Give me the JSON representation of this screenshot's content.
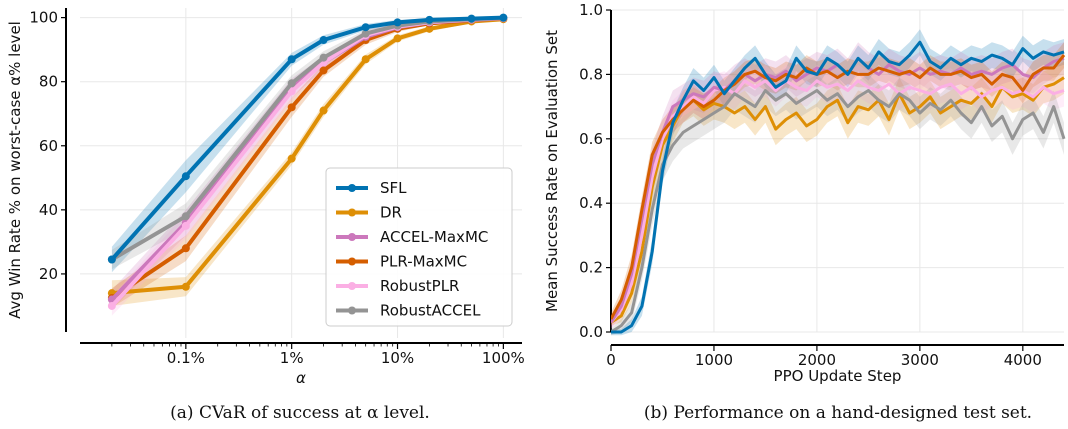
{
  "chart_data": [
    {
      "type": "line",
      "caption": "(a) CVaR of success at α level.",
      "xlabel": "α",
      "ylabel": "Avg Win Rate % on worst-case α% level",
      "xscale": "log",
      "xlim": [
        0.0001,
        1.5
      ],
      "ylim": [
        0,
        103
      ],
      "x_ticks": [
        0.001,
        0.01,
        0.1,
        1
      ],
      "x_tick_labels": [
        "0.1%",
        "1%",
        "10%",
        "100%"
      ],
      "y_ticks": [
        20,
        40,
        60,
        80,
        100
      ],
      "y_tick_labels": [
        "20",
        "40",
        "60",
        "80",
        "100"
      ],
      "grid": true,
      "legend_position": "lower-right",
      "x": [
        0.0002,
        0.001,
        0.01,
        0.02,
        0.05,
        0.1,
        0.2,
        0.5,
        1
      ],
      "series": [
        {
          "name": "SFL",
          "color": "#0173b2",
          "values": [
            24.5,
            50.5,
            87,
            93,
            97,
            98.5,
            99.3,
            99.7,
            100
          ],
          "band": [
            4,
            5,
            2,
            1.5,
            1,
            0.8,
            0.5,
            0.3,
            0.2
          ]
        },
        {
          "name": "DR",
          "color": "#de8f05",
          "values": [
            14,
            16,
            56,
            71,
            87,
            93.5,
            96.5,
            98.8,
            99.5
          ],
          "band": [
            4,
            3,
            2,
            2,
            1.5,
            1,
            0.8,
            0.5,
            0.3
          ]
        },
        {
          "name": "ACCEL-MaxMC",
          "color": "#cc78bc",
          "values": [
            12,
            36,
            78,
            86,
            94,
            97,
            98.5,
            99.3,
            99.8
          ],
          "band": [
            3,
            4,
            3,
            2,
            1.5,
            1,
            0.5,
            0.3,
            0.2
          ]
        },
        {
          "name": "PLR-MaxMC",
          "color": "#d55e00",
          "values": [
            12.5,
            28,
            72,
            83.5,
            93,
            96.5,
            98.2,
            99.2,
            99.8
          ],
          "band": [
            3,
            4,
            3,
            2,
            1.5,
            1,
            0.5,
            0.3,
            0.2
          ]
        },
        {
          "name": "RobustPLR",
          "color": "#fbafe4",
          "values": [
            10,
            35,
            77,
            86,
            94.5,
            97.2,
            98.6,
            99.4,
            99.9
          ],
          "band": [
            3,
            4,
            3,
            2,
            1.5,
            1,
            0.5,
            0.3,
            0.2
          ]
        },
        {
          "name": "RobustACCEL",
          "color": "#949494",
          "values": [
            24.5,
            38,
            79.5,
            87.5,
            95,
            97.5,
            98.8,
            99.5,
            99.9
          ],
          "band": [
            3,
            4,
            2.5,
            2,
            1.2,
            1,
            0.5,
            0.3,
            0.2
          ]
        }
      ]
    },
    {
      "type": "line",
      "caption": "(b) Performance on a hand-designed test set.",
      "xlabel": "PPO Update Step",
      "ylabel": "Mean Success Rate on Evaluation Set",
      "xlim": [
        0,
        4400
      ],
      "ylim": [
        0,
        1.0
      ],
      "x_ticks": [
        0,
        1000,
        2000,
        3000,
        4000
      ],
      "x_tick_labels": [
        "0",
        "1000",
        "2000",
        "3000",
        "4000"
      ],
      "y_ticks": [
        0.0,
        0.2,
        0.4,
        0.6,
        0.8,
        1.0
      ],
      "y_tick_labels": [
        "0.0",
        "0.2",
        "0.4",
        "0.6",
        "0.8",
        "1.0"
      ],
      "grid": true,
      "x": [
        0,
        100,
        200,
        300,
        400,
        500,
        600,
        700,
        800,
        900,
        1000,
        1100,
        1200,
        1300,
        1400,
        1500,
        1600,
        1700,
        1800,
        1900,
        2000,
        2100,
        2200,
        2300,
        2400,
        2500,
        2600,
        2700,
        2800,
        2900,
        3000,
        3100,
        3200,
        3300,
        3400,
        3500,
        3600,
        3700,
        3800,
        3900,
        4000,
        4100,
        4200,
        4300,
        4400
      ],
      "series": [
        {
          "name": "SFL",
          "color": "#0173b2",
          "values": [
            0.0,
            0.0,
            0.02,
            0.08,
            0.25,
            0.5,
            0.65,
            0.72,
            0.78,
            0.75,
            0.79,
            0.74,
            0.78,
            0.82,
            0.85,
            0.8,
            0.76,
            0.78,
            0.85,
            0.81,
            0.8,
            0.85,
            0.83,
            0.8,
            0.85,
            0.82,
            0.87,
            0.84,
            0.83,
            0.86,
            0.9,
            0.84,
            0.82,
            0.85,
            0.83,
            0.85,
            0.84,
            0.86,
            0.85,
            0.83,
            0.88,
            0.85,
            0.87,
            0.86,
            0.87
          ],
          "band": [
            0.01,
            0.01,
            0.02,
            0.03,
            0.04,
            0.04,
            0.04,
            0.04,
            0.04,
            0.04,
            0.04,
            0.04,
            0.04,
            0.04,
            0.04,
            0.04,
            0.04,
            0.04,
            0.04,
            0.04,
            0.04,
            0.04,
            0.04,
            0.04,
            0.04,
            0.04,
            0.04,
            0.04,
            0.04,
            0.04,
            0.04,
            0.04,
            0.04,
            0.04,
            0.04,
            0.04,
            0.04,
            0.04,
            0.04,
            0.04,
            0.04,
            0.04,
            0.04,
            0.04,
            0.04
          ]
        },
        {
          "name": "DR",
          "color": "#de8f05",
          "values": [
            0.03,
            0.05,
            0.12,
            0.25,
            0.45,
            0.58,
            0.64,
            0.7,
            0.72,
            0.69,
            0.71,
            0.7,
            0.68,
            0.7,
            0.66,
            0.7,
            0.63,
            0.66,
            0.68,
            0.64,
            0.66,
            0.7,
            0.72,
            0.65,
            0.7,
            0.69,
            0.72,
            0.66,
            0.74,
            0.68,
            0.7,
            0.73,
            0.68,
            0.7,
            0.72,
            0.71,
            0.74,
            0.7,
            0.76,
            0.73,
            0.74,
            0.72,
            0.76,
            0.77,
            0.79
          ],
          "band": [
            0.01,
            0.02,
            0.03,
            0.04,
            0.05,
            0.05,
            0.05,
            0.05,
            0.05,
            0.05,
            0.05,
            0.05,
            0.05,
            0.05,
            0.05,
            0.05,
            0.05,
            0.05,
            0.05,
            0.05,
            0.05,
            0.05,
            0.05,
            0.05,
            0.05,
            0.05,
            0.05,
            0.05,
            0.05,
            0.05,
            0.05,
            0.05,
            0.05,
            0.05,
            0.05,
            0.05,
            0.05,
            0.05,
            0.05,
            0.05,
            0.05,
            0.05,
            0.05,
            0.05,
            0.05
          ]
        },
        {
          "name": "ACCEL-MaxMC",
          "color": "#cc78bc",
          "values": [
            0.03,
            0.08,
            0.18,
            0.35,
            0.52,
            0.62,
            0.7,
            0.72,
            0.74,
            0.73,
            0.76,
            0.75,
            0.78,
            0.8,
            0.78,
            0.8,
            0.79,
            0.81,
            0.78,
            0.8,
            0.82,
            0.81,
            0.83,
            0.8,
            0.85,
            0.82,
            0.8,
            0.83,
            0.81,
            0.8,
            0.82,
            0.8,
            0.81,
            0.8,
            0.82,
            0.8,
            0.81,
            0.8,
            0.82,
            0.83,
            0.8,
            0.79,
            0.82,
            0.84,
            0.85
          ],
          "band": [
            0.02,
            0.03,
            0.04,
            0.05,
            0.05,
            0.05,
            0.05,
            0.05,
            0.05,
            0.05,
            0.05,
            0.05,
            0.05,
            0.05,
            0.05,
            0.05,
            0.05,
            0.05,
            0.05,
            0.05,
            0.05,
            0.05,
            0.05,
            0.05,
            0.05,
            0.05,
            0.05,
            0.05,
            0.05,
            0.05,
            0.05,
            0.05,
            0.05,
            0.05,
            0.05,
            0.05,
            0.05,
            0.05,
            0.05,
            0.05,
            0.05,
            0.05,
            0.05,
            0.05,
            0.05
          ]
        },
        {
          "name": "PLR-MaxMC",
          "color": "#d55e00",
          "values": [
            0.04,
            0.1,
            0.2,
            0.38,
            0.55,
            0.62,
            0.66,
            0.69,
            0.72,
            0.7,
            0.72,
            0.75,
            0.77,
            0.8,
            0.81,
            0.79,
            0.78,
            0.8,
            0.79,
            0.82,
            0.8,
            0.81,
            0.79,
            0.81,
            0.8,
            0.8,
            0.82,
            0.81,
            0.8,
            0.81,
            0.79,
            0.82,
            0.8,
            0.8,
            0.81,
            0.79,
            0.8,
            0.77,
            0.8,
            0.79,
            0.75,
            0.8,
            0.82,
            0.82,
            0.86
          ],
          "band": [
            0.02,
            0.03,
            0.04,
            0.04,
            0.04,
            0.04,
            0.04,
            0.04,
            0.04,
            0.04,
            0.04,
            0.04,
            0.04,
            0.04,
            0.04,
            0.04,
            0.04,
            0.04,
            0.04,
            0.04,
            0.04,
            0.04,
            0.04,
            0.04,
            0.04,
            0.04,
            0.04,
            0.04,
            0.04,
            0.04,
            0.04,
            0.04,
            0.04,
            0.04,
            0.04,
            0.04,
            0.04,
            0.04,
            0.04,
            0.04,
            0.04,
            0.04,
            0.04,
            0.04,
            0.04
          ]
        },
        {
          "name": "RobustPLR",
          "color": "#fbafe4",
          "values": [
            0.03,
            0.07,
            0.15,
            0.3,
            0.48,
            0.6,
            0.67,
            0.7,
            0.73,
            0.71,
            0.75,
            0.76,
            0.74,
            0.78,
            0.76,
            0.78,
            0.75,
            0.78,
            0.76,
            0.75,
            0.78,
            0.76,
            0.77,
            0.75,
            0.78,
            0.76,
            0.75,
            0.77,
            0.74,
            0.76,
            0.75,
            0.74,
            0.76,
            0.77,
            0.74,
            0.76,
            0.73,
            0.75,
            0.76,
            0.74,
            0.75,
            0.73,
            0.76,
            0.74,
            0.75
          ],
          "band": [
            0.02,
            0.03,
            0.04,
            0.05,
            0.05,
            0.05,
            0.05,
            0.05,
            0.05,
            0.05,
            0.05,
            0.05,
            0.05,
            0.05,
            0.05,
            0.05,
            0.05,
            0.05,
            0.05,
            0.05,
            0.05,
            0.05,
            0.05,
            0.05,
            0.05,
            0.05,
            0.05,
            0.05,
            0.05,
            0.05,
            0.05,
            0.05,
            0.05,
            0.05,
            0.05,
            0.05,
            0.05,
            0.05,
            0.05,
            0.05,
            0.05,
            0.05,
            0.05,
            0.05,
            0.05
          ]
        },
        {
          "name": "RobustACCEL",
          "color": "#949494",
          "values": [
            0.0,
            0.02,
            0.06,
            0.2,
            0.38,
            0.52,
            0.58,
            0.62,
            0.64,
            0.66,
            0.68,
            0.7,
            0.74,
            0.72,
            0.7,
            0.75,
            0.72,
            0.74,
            0.71,
            0.73,
            0.75,
            0.72,
            0.74,
            0.7,
            0.73,
            0.75,
            0.72,
            0.7,
            0.74,
            0.72,
            0.68,
            0.71,
            0.69,
            0.72,
            0.68,
            0.65,
            0.7,
            0.64,
            0.67,
            0.6,
            0.66,
            0.68,
            0.62,
            0.7,
            0.6
          ],
          "band": [
            0.01,
            0.02,
            0.03,
            0.04,
            0.05,
            0.05,
            0.05,
            0.05,
            0.05,
            0.05,
            0.05,
            0.05,
            0.05,
            0.05,
            0.05,
            0.05,
            0.05,
            0.05,
            0.05,
            0.05,
            0.05,
            0.05,
            0.05,
            0.05,
            0.05,
            0.05,
            0.05,
            0.05,
            0.05,
            0.05,
            0.05,
            0.05,
            0.05,
            0.05,
            0.05,
            0.05,
            0.05,
            0.05,
            0.05,
            0.05,
            0.05,
            0.05,
            0.05,
            0.05,
            0.05
          ]
        }
      ]
    }
  ]
}
